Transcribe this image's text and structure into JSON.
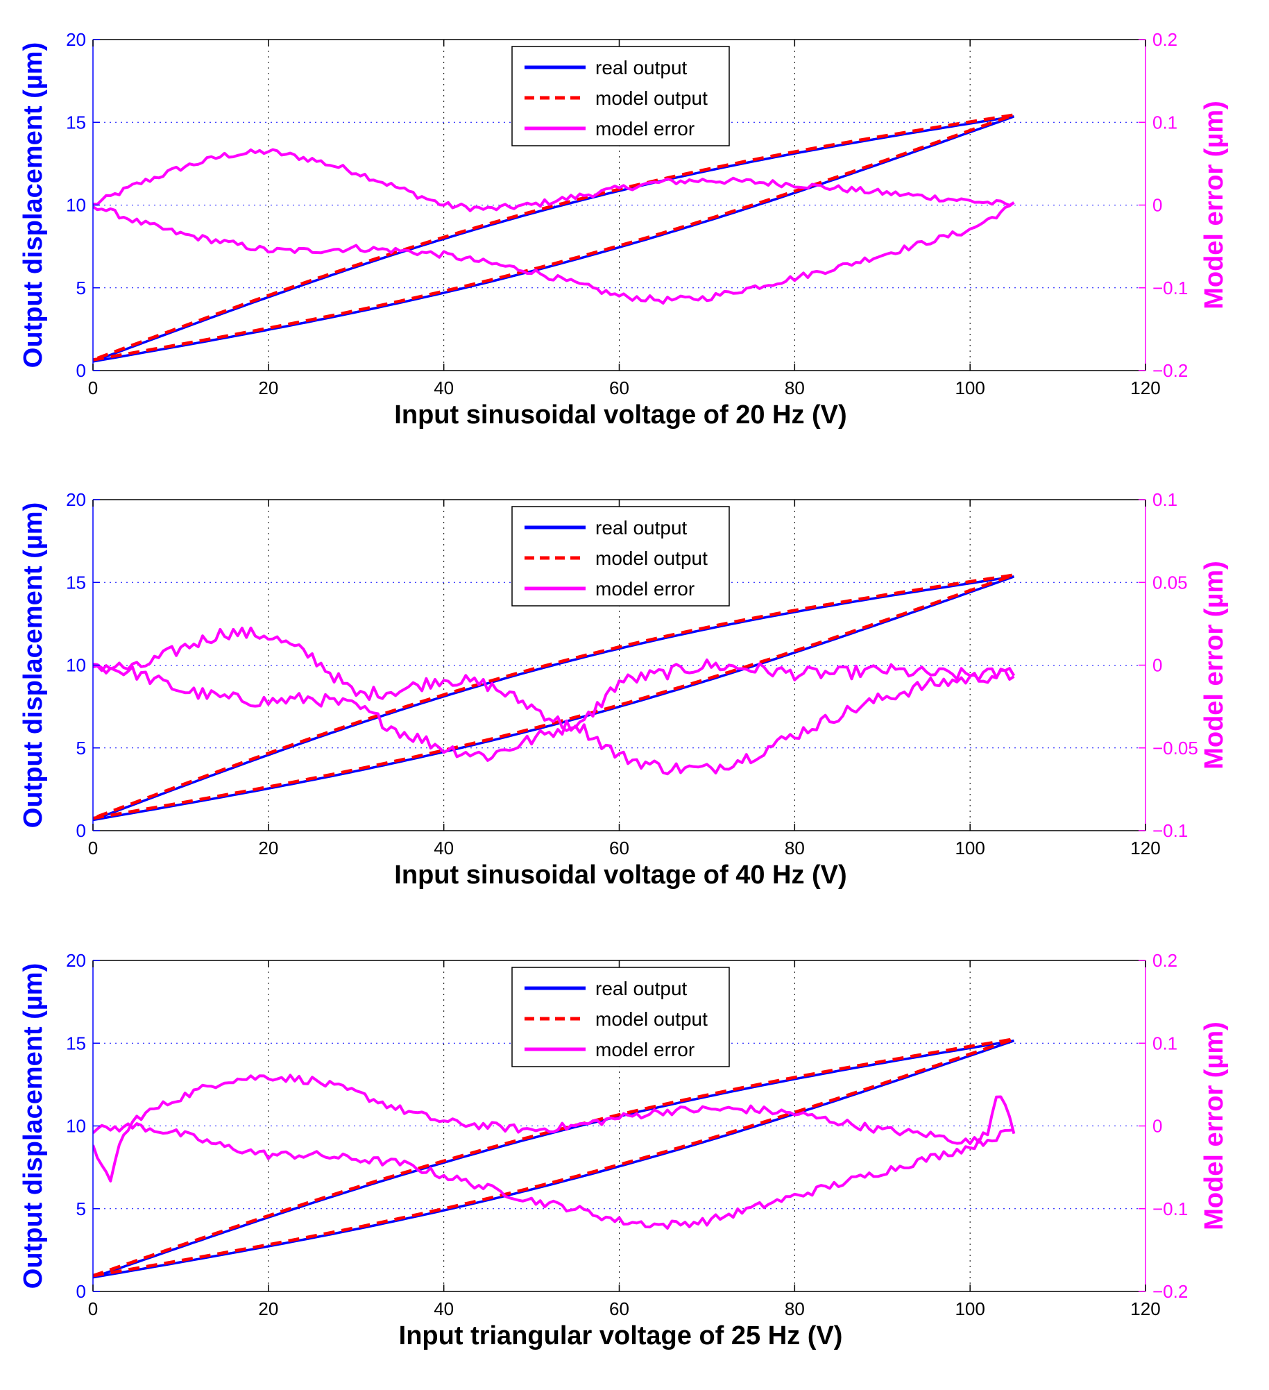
{
  "colors": {
    "left_axis": "#0000ff",
    "right_axis": "#ff00ff",
    "real_output": "#0000ff",
    "model_output": "#ff0000",
    "model_error": "#ff00ff",
    "grid": "#0000ff",
    "grid_x": "#000000"
  },
  "legend": {
    "real": "real output",
    "model": "model output",
    "error": "model error"
  },
  "chart_data": [
    {
      "type": "line",
      "title": "",
      "xlabel": "Input sinusoidal voltage of 20 Hz (V)",
      "ylabel": "Output displacement (µm)",
      "y2label": "Model error (µm)",
      "xlim": [
        0,
        120
      ],
      "ylim": [
        0,
        20
      ],
      "y2lim": [
        -0.2,
        0.2
      ],
      "xticks": [
        0,
        20,
        40,
        60,
        80,
        100,
        120
      ],
      "yticks": [
        0,
        5,
        10,
        15,
        20
      ],
      "y2ticks": [
        -0.2,
        -0.1,
        0,
        0.1,
        0.2
      ],
      "y2ticklabels": [
        "−0.2",
        "−0.1",
        "0",
        "0.1",
        "0.2"
      ],
      "legend_position": "top-center",
      "loop": {
        "vmax": 105,
        "ymin": 0.6,
        "ymax": 15.4,
        "asc_bulge": -1.6,
        "desc_bulge": 1.9
      },
      "series": [
        {
          "name": "real output",
          "axis": "left",
          "style": "solid"
        },
        {
          "name": "model output",
          "axis": "left",
          "style": "dashed"
        },
        {
          "name": "model error",
          "axis": "right",
          "style": "solid",
          "branch_a": {
            "x": [
              0,
              5,
              10,
              15,
              20,
              25,
              30,
              35,
              40,
              45,
              50,
              55,
              60,
              65,
              70,
              75,
              80,
              85,
              90,
              95,
              100,
              105
            ],
            "y": [
              0.0,
              0.025,
              0.045,
              0.06,
              0.065,
              0.055,
              0.04,
              0.02,
              0.0,
              -0.005,
              0.0,
              0.01,
              0.02,
              0.028,
              0.03,
              0.028,
              0.025,
              0.02,
              0.015,
              0.01,
              0.005,
              0.0
            ]
          },
          "branch_b": {
            "x": [
              0,
              5,
              10,
              15,
              20,
              25,
              30,
              35,
              40,
              45,
              50,
              55,
              60,
              65,
              70,
              75,
              80,
              85,
              90,
              95,
              100,
              105
            ],
            "y": [
              0.0,
              -0.02,
              -0.035,
              -0.045,
              -0.055,
              -0.055,
              -0.052,
              -0.055,
              -0.06,
              -0.07,
              -0.08,
              -0.095,
              -0.11,
              -0.115,
              -0.112,
              -0.1,
              -0.088,
              -0.075,
              -0.06,
              -0.045,
              -0.03,
              0.0
            ]
          },
          "noise": 0.004
        }
      ]
    },
    {
      "type": "line",
      "title": "",
      "xlabel": "Input sinusoidal voltage of 40 Hz (V)",
      "ylabel": "Output displacement (µm)",
      "y2label": "Model error (µm)",
      "xlim": [
        0,
        120
      ],
      "ylim": [
        0,
        20
      ],
      "y2lim": [
        -0.1,
        0.1
      ],
      "xticks": [
        0,
        20,
        40,
        60,
        80,
        100,
        120
      ],
      "yticks": [
        0,
        5,
        10,
        15,
        20
      ],
      "y2ticks": [
        -0.1,
        -0.05,
        0,
        0.05,
        0.1
      ],
      "y2ticklabels": [
        "−0.1",
        "−0.05",
        "0",
        "0.05",
        "0.1"
      ],
      "legend_position": "top-center",
      "loop": {
        "vmax": 105,
        "ymin": 0.7,
        "ymax": 15.4,
        "asc_bulge": -1.6,
        "desc_bulge": 2.0
      },
      "series": [
        {
          "name": "real output",
          "axis": "left",
          "style": "solid"
        },
        {
          "name": "model output",
          "axis": "left",
          "style": "dashed"
        },
        {
          "name": "model error",
          "axis": "right",
          "style": "solid",
          "branch_a": {
            "x": [
              0,
              5,
              10,
              15,
              20,
              25,
              30,
              35,
              40,
              45,
              50,
              55,
              60,
              65,
              70,
              75,
              80,
              85,
              90,
              95,
              100,
              105
            ],
            "y": [
              0.0,
              -0.002,
              0.01,
              0.02,
              0.018,
              0.005,
              -0.018,
              -0.015,
              -0.008,
              -0.012,
              -0.025,
              -0.04,
              -0.01,
              -0.005,
              0.0,
              -0.002,
              -0.005,
              -0.005,
              -0.003,
              -0.005,
              -0.006,
              -0.005
            ]
          },
          "branch_b": {
            "x": [
              0,
              5,
              10,
              15,
              20,
              25,
              30,
              35,
              40,
              45,
              50,
              55,
              60,
              65,
              70,
              75,
              80,
              85,
              90,
              95,
              100,
              105
            ],
            "y": [
              0.0,
              -0.005,
              -0.015,
              -0.02,
              -0.022,
              -0.02,
              -0.025,
              -0.04,
              -0.05,
              -0.055,
              -0.045,
              -0.035,
              -0.055,
              -0.062,
              -0.063,
              -0.055,
              -0.042,
              -0.03,
              -0.02,
              -0.012,
              -0.008,
              -0.005
            ]
          },
          "noise": 0.004
        }
      ]
    },
    {
      "type": "line",
      "title": "",
      "xlabel": "Input triangular voltage of 25 Hz (V)",
      "ylabel": "Output displacement (µm)",
      "y2label": "Model error (µm)",
      "xlim": [
        0,
        120
      ],
      "ylim": [
        0,
        20
      ],
      "y2lim": [
        -0.2,
        0.2
      ],
      "xticks": [
        0,
        20,
        40,
        60,
        80,
        100,
        120
      ],
      "yticks": [
        0,
        5,
        10,
        15,
        20
      ],
      "y2ticks": [
        -0.2,
        -0.1,
        0,
        0.1,
        0.2
      ],
      "y2ticklabels": [
        "−0.2",
        "−0.1",
        "0",
        "0.1",
        "0.2"
      ],
      "legend_position": "top-center",
      "loop": {
        "vmax": 105,
        "ymin": 0.9,
        "ymax": 15.2,
        "asc_bulge": -1.5,
        "desc_bulge": 1.6
      },
      "series": [
        {
          "name": "real output",
          "axis": "left",
          "style": "solid"
        },
        {
          "name": "model output",
          "axis": "left",
          "style": "dashed"
        },
        {
          "name": "model error",
          "axis": "right",
          "style": "solid",
          "branch_a": {
            "x": [
              0,
              1,
              2,
              3,
              5,
              10,
              15,
              20,
              25,
              30,
              35,
              40,
              45,
              50,
              55,
              60,
              65,
              70,
              75,
              80,
              85,
              90,
              95,
              100,
              102,
              103,
              104,
              105
            ],
            "y": [
              -0.02,
              -0.05,
              -0.07,
              -0.02,
              0.01,
              0.035,
              0.055,
              0.06,
              0.055,
              0.04,
              0.02,
              0.005,
              0.0,
              -0.005,
              0.0,
              0.01,
              0.018,
              0.02,
              0.02,
              0.015,
              0.005,
              -0.005,
              -0.01,
              -0.02,
              -0.01,
              0.04,
              0.03,
              -0.005
            ]
          },
          "branch_b": {
            "x": [
              0,
              5,
              10,
              15,
              20,
              25,
              30,
              35,
              40,
              45,
              50,
              55,
              60,
              65,
              70,
              75,
              80,
              85,
              90,
              95,
              100,
              105
            ],
            "y": [
              -0.005,
              0.0,
              -0.01,
              -0.025,
              -0.035,
              -0.035,
              -0.04,
              -0.045,
              -0.06,
              -0.075,
              -0.09,
              -0.1,
              -0.115,
              -0.12,
              -0.115,
              -0.1,
              -0.085,
              -0.07,
              -0.055,
              -0.04,
              -0.025,
              -0.005
            ]
          },
          "noise": 0.005
        }
      ]
    }
  ]
}
